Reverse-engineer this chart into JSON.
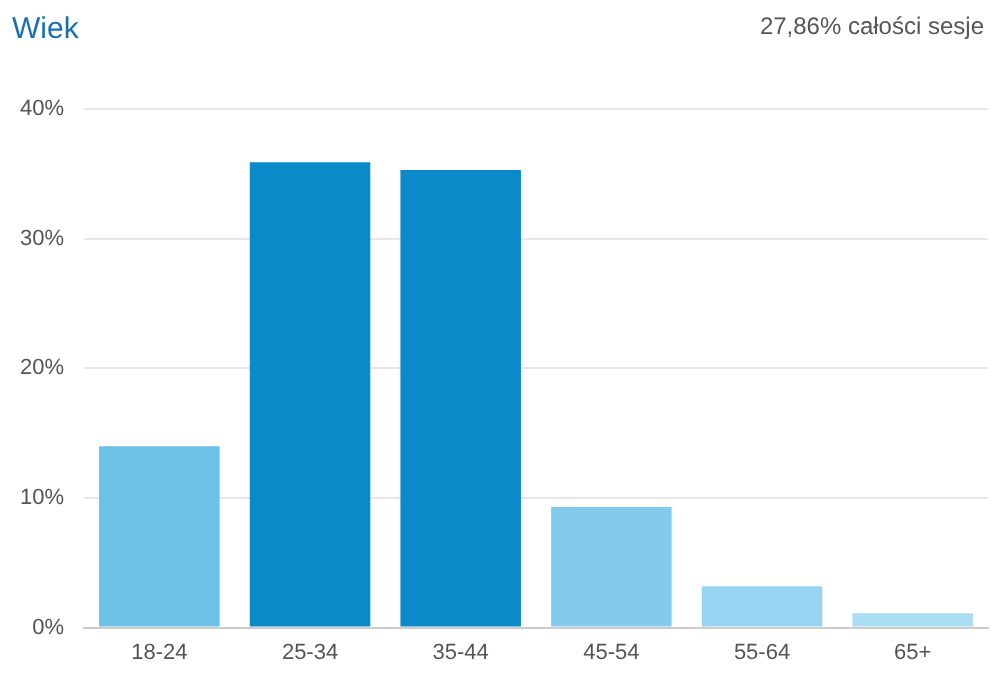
{
  "chart_data": {
    "type": "bar",
    "title": "Wiek",
    "annotations": [
      "27,86% całości sesje"
    ],
    "categories": [
      "18-24",
      "25-34",
      "35-44",
      "45-54",
      "55-64",
      "65+"
    ],
    "values": [
      14.0,
      35.9,
      35.3,
      9.3,
      3.2,
      1.1
    ],
    "colors": [
      "#6dc1e6",
      "#0a8ac9",
      "#0a8ac9",
      "#82cbeb",
      "#97d4f1",
      "#a9ddf4"
    ],
    "ylim": [
      0,
      40
    ],
    "yticks": [
      {
        "value": 0,
        "label": "0%"
      },
      {
        "value": 10,
        "label": "10%"
      },
      {
        "value": 20,
        "label": "20%"
      },
      {
        "value": 30,
        "label": "30%"
      },
      {
        "value": 40,
        "label": "40%"
      }
    ],
    "grid": "y",
    "legend": false
  }
}
